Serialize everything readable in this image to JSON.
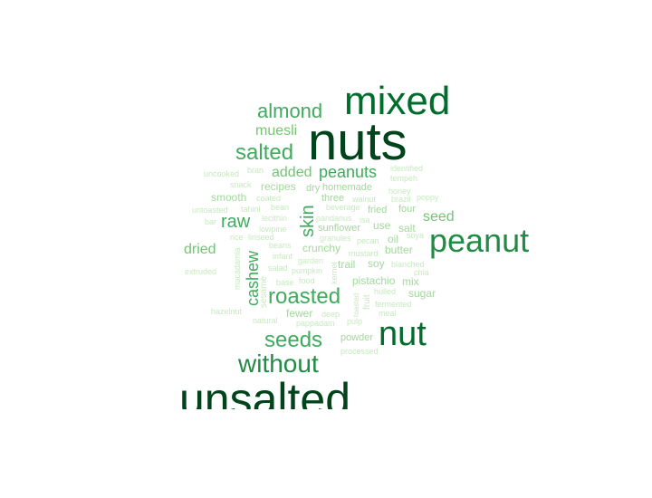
{
  "words": {
    "nuts": "nuts",
    "mixed": "mixed",
    "unsalted": "unsalted",
    "peanut": "peanut",
    "nut": "nut",
    "almond": "almond",
    "salted": "salted",
    "muesli": "muesli",
    "without": "without",
    "seeds": "seeds",
    "roasted": "roasted",
    "raw": "raw",
    "skin": "skin",
    "cashew": "cashew",
    "dried": "dried",
    "added": "added",
    "peanuts": "peanuts",
    "seed": "seed",
    "recipes": "recipes",
    "smooth": "smooth",
    "crunchy": "crunchy",
    "butter": "butter",
    "salt": "salt",
    "use": "use",
    "oil": "oil",
    "soy": "soy",
    "sugar": "sugar",
    "mix": "mix",
    "pistachio": "pistachio",
    "fewer": "fewer",
    "trail": "trail",
    "sunflower": "sunflower",
    "fried": "fried",
    "four": "four",
    "three": "three",
    "homemade": "homemade",
    "dry": "dry",
    "powder": "powder",
    "uncooked": "uncooked",
    "bran": "bran",
    "snack": "snack",
    "coated": "coated",
    "untoasted": "untoasted",
    "tahini": "tahini",
    "bean": "bean",
    "bar": "bar",
    "lecithin": "lecithin",
    "lowpine": "lowpine",
    "pandanus": "pandanus",
    "isa": "isa",
    "beverage": "beverage",
    "walnut": "walnut",
    "identified": "identified",
    "tempeh": "tempeh",
    "honey": "honey",
    "brazil": "brazil",
    "poppy": "poppy",
    "rice": "rice",
    "linseed": "linseed",
    "granules": "granules",
    "pecan": "pecan",
    "soya": "soya",
    "beans": "beans",
    "infant": "infant",
    "mustard": "mustard",
    "blanched": "blanched",
    "chia": "chia",
    "extruded": "extruded",
    "macadamia": "macadamia",
    "salad": "salad",
    "garden": "garden",
    "pumpkin": "pumpkin",
    "kernel": "kernel",
    "sesame": "sesame",
    "base": "base",
    "food": "food",
    "fruit": "fruit",
    "hulled": "hulled",
    "toasted": "toasted",
    "fermented": "fermented",
    "hazelnut": "hazelnut",
    "deep": "deep",
    "meal": "meal",
    "natural": "natural",
    "pappadam": "pappadam",
    "pulp": "pulp",
    "processed": "processed"
  },
  "colors": {
    "darkest": "#00441b",
    "dark": "#006d2c",
    "medium": "#238b45",
    "mid": "#41ab5d",
    "light": "#74c476",
    "lighter": "#a1d99b",
    "lightest": "#c7e9c0",
    "background": "#ffffff"
  }
}
